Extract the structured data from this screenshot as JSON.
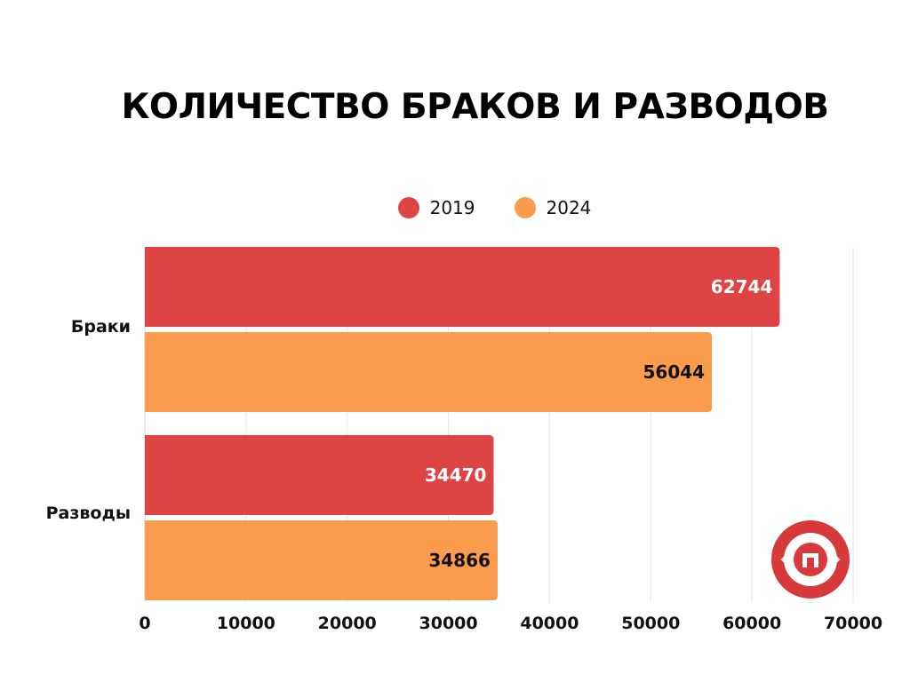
{
  "colors": {
    "series_2019": "#df4445",
    "series_2024": "#fb9b4d",
    "grid": "#e6e6e6",
    "axis": "#d9d9d9",
    "text": "#111111",
    "label_on_red": "#ffffff",
    "label_on_orange": "#111111"
  },
  "logo_icon": "eye-badge-icon",
  "chart_data": {
    "type": "bar",
    "orientation": "horizontal",
    "title": "КОЛИЧЕСТВО БРАКОВ И РАЗВОДОВ",
    "categories": [
      "Браки",
      "Разводы"
    ],
    "series": [
      {
        "name": "2019",
        "values": [
          62744,
          34470
        ]
      },
      {
        "name": "2024",
        "values": [
          56044,
          34866
        ]
      }
    ],
    "xlim": [
      0,
      70000
    ],
    "xticks": [
      0,
      10000,
      20000,
      30000,
      40000,
      50000,
      60000,
      70000
    ],
    "xlabel": "",
    "ylabel": "",
    "grid": true,
    "legend_position": "top",
    "data_labels": true
  }
}
